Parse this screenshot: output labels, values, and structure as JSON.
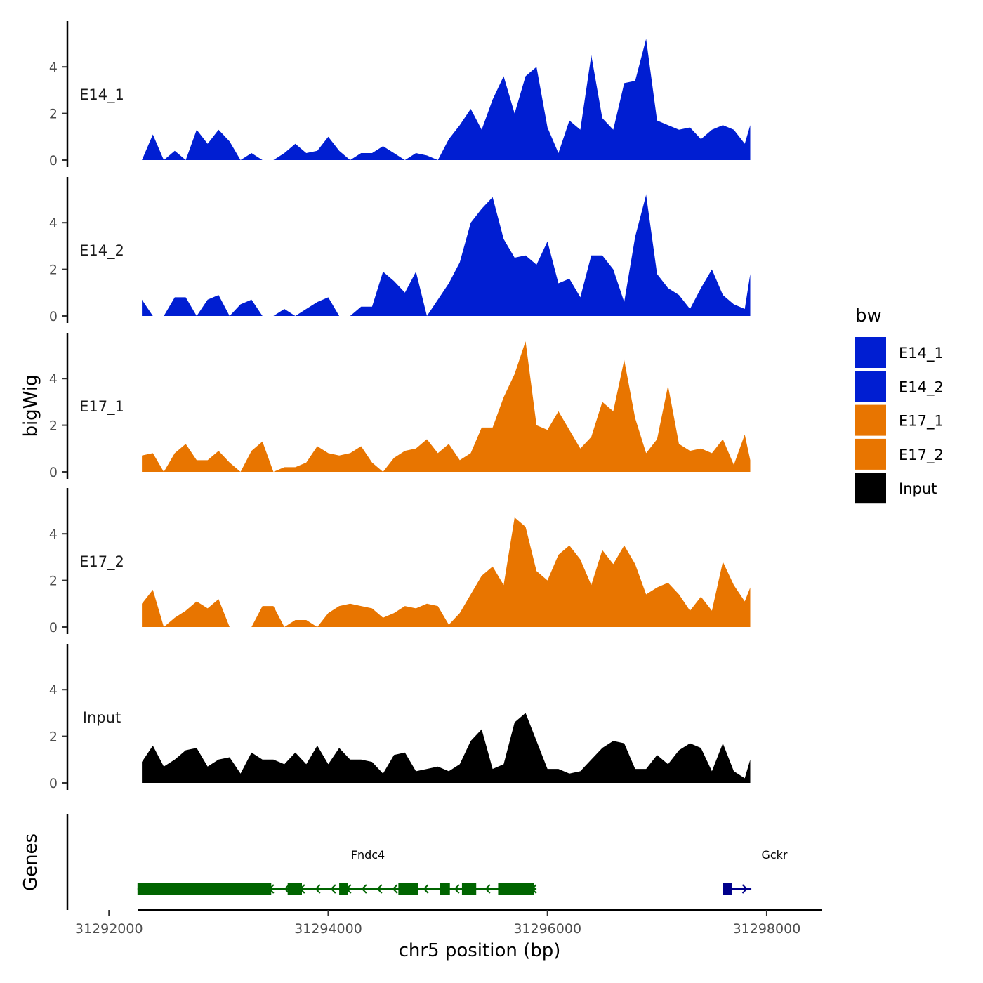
{
  "chart_data": {
    "type": "area",
    "ylabel": "bigWig",
    "xlabel": "chr5 position (bp)",
    "xlim": [
      31291800,
      31298500
    ],
    "x_ticks": [
      31292000,
      31294000,
      31296000,
      31298000
    ],
    "x_tick_labels": [
      "31292000",
      "31294000",
      "31296000",
      "31298000"
    ],
    "ylim": [
      0,
      6
    ],
    "y_ticks": [
      0,
      2,
      4
    ],
    "y_tick_labels": [
      "0",
      "2",
      "4"
    ],
    "tracks_x": [
      31292300,
      31292400,
      31292500,
      31292600,
      31292700,
      31292800,
      31292900,
      31293000,
      31293100,
      31293200,
      31293300,
      31293400,
      31293500,
      31293600,
      31293700,
      31293800,
      31293900,
      31294000,
      31294100,
      31294200,
      31294300,
      31294400,
      31294500,
      31294600,
      31294700,
      31294800,
      31294900,
      31295000,
      31295100,
      31295200,
      31295300,
      31295400,
      31295500,
      31295600,
      31295700,
      31295800,
      31295900,
      31296000,
      31296100,
      31296200,
      31296300,
      31296400,
      31296500,
      31296600,
      31296700,
      31296800,
      31296900,
      31297000,
      31297100,
      31297200,
      31297300,
      31297400,
      31297500,
      31297600,
      31297700,
      31297800,
      31297850
    ],
    "series": [
      {
        "name": "E14_1",
        "label": "E14_1",
        "color": "#001ed2",
        "values": [
          0.0,
          1.1,
          0.0,
          0.4,
          0.0,
          1.3,
          0.7,
          1.3,
          0.8,
          0.0,
          0.3,
          0.0,
          0.0,
          0.3,
          0.7,
          0.3,
          0.4,
          1.0,
          0.4,
          0.0,
          0.3,
          0.3,
          0.6,
          0.3,
          0.0,
          0.3,
          0.2,
          0.0,
          0.9,
          1.5,
          2.2,
          1.3,
          2.6,
          3.6,
          2.0,
          3.6,
          4.0,
          1.4,
          0.3,
          1.7,
          1.3,
          4.5,
          1.8,
          1.3,
          3.3,
          3.4,
          5.2,
          1.7,
          1.5,
          1.3,
          1.4,
          0.9,
          1.3,
          1.5,
          1.3,
          0.7,
          1.5
        ]
      },
      {
        "name": "E14_2",
        "label": "E14_2",
        "color": "#001ed2",
        "values": [
          0.7,
          0.0,
          0.0,
          0.8,
          0.8,
          0.0,
          0.7,
          0.9,
          0.0,
          0.5,
          0.7,
          0.0,
          0.0,
          0.3,
          0.0,
          0.3,
          0.6,
          0.8,
          0.0,
          0.0,
          0.4,
          0.4,
          1.9,
          1.5,
          1.0,
          1.9,
          0.0,
          0.7,
          1.4,
          2.3,
          4.0,
          4.6,
          5.1,
          3.3,
          2.5,
          2.6,
          2.2,
          3.2,
          1.4,
          1.6,
          0.8,
          2.6,
          2.6,
          2.0,
          0.6,
          3.4,
          5.2,
          1.8,
          1.2,
          0.9,
          0.3,
          1.2,
          2.0,
          0.9,
          0.5,
          0.3,
          1.8
        ]
      },
      {
        "name": "E17_1",
        "label": "E17_1",
        "color": "#e87500",
        "values": [
          0.7,
          0.8,
          0.0,
          0.8,
          1.2,
          0.5,
          0.5,
          0.9,
          0.4,
          0.0,
          0.9,
          1.3,
          0.0,
          0.2,
          0.2,
          0.4,
          1.1,
          0.8,
          0.7,
          0.8,
          1.1,
          0.4,
          0.0,
          0.6,
          0.9,
          1.0,
          1.4,
          0.8,
          1.2,
          0.5,
          0.8,
          1.9,
          1.9,
          3.2,
          4.2,
          5.6,
          2.0,
          1.8,
          2.6,
          1.8,
          1.0,
          1.5,
          3.0,
          2.6,
          4.8,
          2.3,
          0.8,
          1.4,
          3.7,
          1.2,
          0.9,
          1.0,
          0.8,
          1.4,
          0.3,
          1.6,
          0.5
        ]
      },
      {
        "name": "E17_2",
        "label": "E17_2",
        "color": "#e87500",
        "values": [
          1.0,
          1.6,
          0.0,
          0.4,
          0.7,
          1.1,
          0.8,
          1.2,
          0.0,
          0.0,
          0.0,
          0.9,
          0.9,
          0.0,
          0.3,
          0.3,
          0.0,
          0.6,
          0.9,
          1.0,
          0.9,
          0.8,
          0.4,
          0.6,
          0.9,
          0.8,
          1.0,
          0.9,
          0.1,
          0.6,
          1.4,
          2.2,
          2.6,
          1.8,
          4.7,
          4.3,
          2.4,
          2.0,
          3.1,
          3.5,
          2.9,
          1.8,
          3.3,
          2.7,
          3.5,
          2.7,
          1.4,
          1.7,
          1.9,
          1.4,
          0.7,
          1.3,
          0.7,
          2.8,
          1.8,
          1.1,
          1.7
        ]
      },
      {
        "name": "Input",
        "label": "Input",
        "color": "#000000",
        "values": [
          0.9,
          1.6,
          0.7,
          1.0,
          1.4,
          1.5,
          0.7,
          1.0,
          1.1,
          0.4,
          1.3,
          1.0,
          1.0,
          0.8,
          1.3,
          0.8,
          1.6,
          0.8,
          1.5,
          1.0,
          1.0,
          0.9,
          0.4,
          1.2,
          1.3,
          0.5,
          0.6,
          0.7,
          0.5,
          0.8,
          1.8,
          2.3,
          0.6,
          0.8,
          2.6,
          3.0,
          1.8,
          0.6,
          0.6,
          0.4,
          0.5,
          1.0,
          1.5,
          1.8,
          1.7,
          0.6,
          0.6,
          1.2,
          0.8,
          1.4,
          1.7,
          1.5,
          0.5,
          1.7,
          0.5,
          0.2,
          1.0
        ]
      }
    ],
    "legend": {
      "title": "bw",
      "entries": [
        {
          "label": "E14_1",
          "color": "#001ed2"
        },
        {
          "label": "E14_2",
          "color": "#001ed2"
        },
        {
          "label": "E17_1",
          "color": "#e87500"
        },
        {
          "label": "E17_2",
          "color": "#e87500"
        },
        {
          "label": "Input",
          "color": "#000000"
        }
      ]
    },
    "genes_title": "Genes",
    "genes": [
      {
        "name": "Fndc4",
        "label": "Fndc4",
        "color": "#006400",
        "start": 31292260,
        "end": 31295900,
        "exons": [
          [
            31292260,
            31293480
          ],
          [
            31293630,
            31293760
          ],
          [
            31294100,
            31294180
          ],
          [
            31294640,
            31294820
          ],
          [
            31295020,
            31295110
          ],
          [
            31295220,
            31295350
          ],
          [
            31295550,
            31295880
          ]
        ]
      },
      {
        "name": "Gckr",
        "label": "Gckr",
        "color": "#00008b",
        "start": 31297600,
        "end": 31297860,
        "exons": [
          [
            31297600,
            31297680
          ]
        ]
      }
    ]
  }
}
